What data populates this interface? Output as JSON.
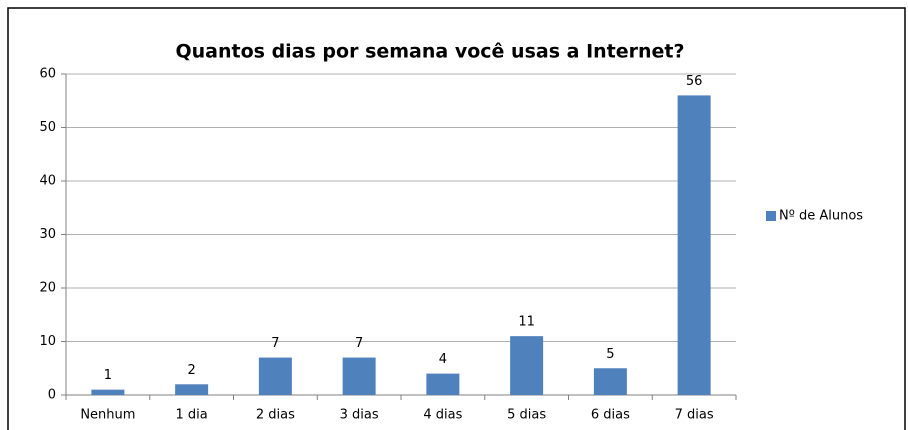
{
  "chart_data": {
    "type": "bar",
    "title": "Quantos dias por semana você usas a Internet?",
    "categories": [
      "Nenhum",
      "1 dia",
      "2 dias",
      "3 dias",
      "4 dias",
      "5 dias",
      "6 dias",
      "7 dias"
    ],
    "series": [
      {
        "name": "Nº de Alunos",
        "color": "#4f81bd",
        "values": [
          1,
          2,
          7,
          7,
          4,
          11,
          5,
          56
        ]
      }
    ],
    "ylim": [
      0,
      60
    ],
    "yticks": [
      0,
      10,
      20,
      30,
      40,
      50,
      60
    ],
    "grid": true,
    "legend": "right"
  }
}
